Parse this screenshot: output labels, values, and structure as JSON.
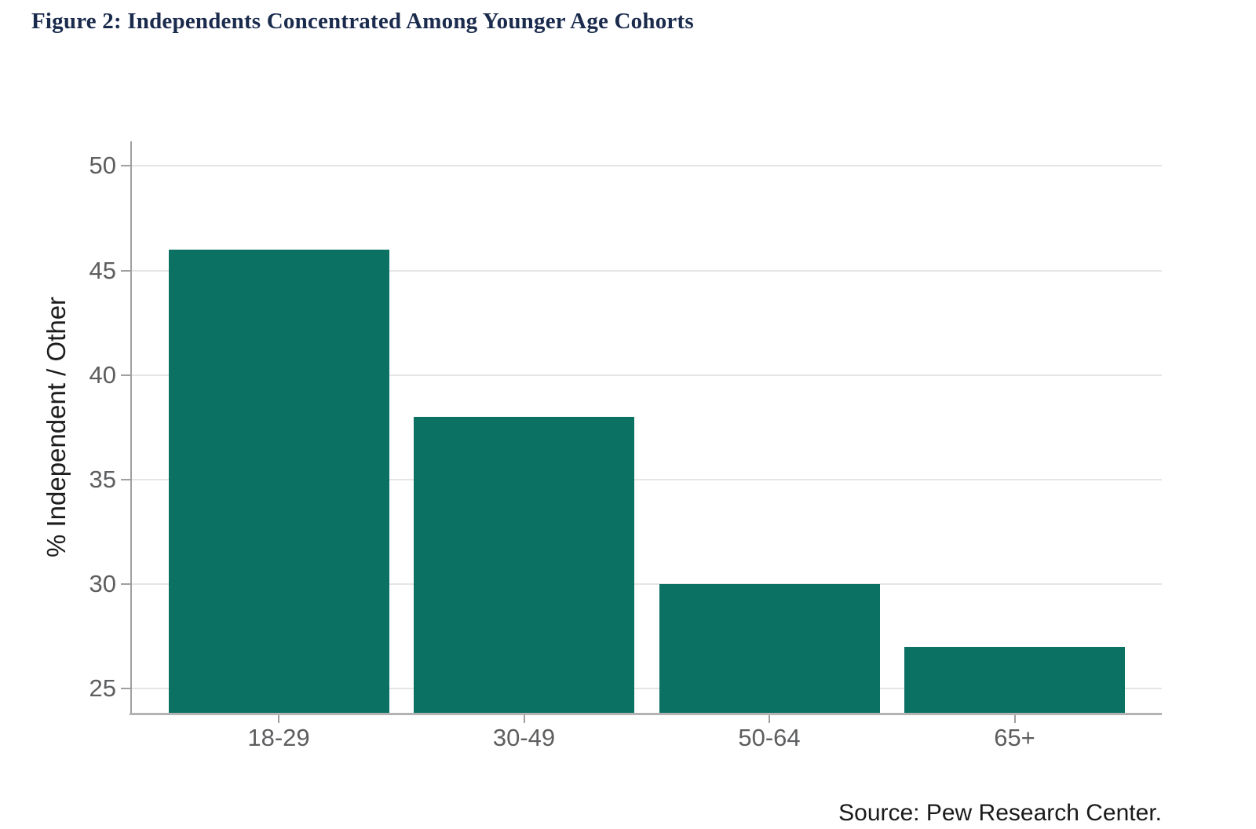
{
  "chart_data": {
    "type": "bar",
    "title": "Figure 2: Independents Concentrated Among Younger Age Cohorts",
    "categories": [
      "18-29",
      "30-49",
      "50-64",
      "65+"
    ],
    "values": [
      46,
      38,
      30,
      27
    ],
    "xlabel": "",
    "ylabel": "% Independent / Other",
    "yticks": [
      25,
      30,
      35,
      40,
      45,
      50
    ],
    "ylim": [
      23.85,
      51.2
    ],
    "grid": true,
    "legend": "none",
    "bar_color": "#0a7163",
    "title_color": "#1a2b4d",
    "source": "Source: Pew Research Center."
  }
}
